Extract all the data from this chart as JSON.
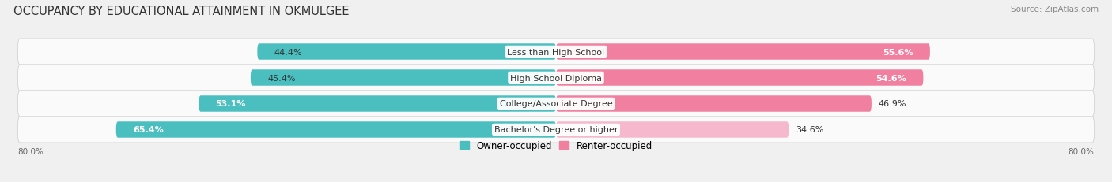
{
  "title": "OCCUPANCY BY EDUCATIONAL ATTAINMENT IN OKMULGEE",
  "source": "Source: ZipAtlas.com",
  "categories": [
    "Less than High School",
    "High School Diploma",
    "College/Associate Degree",
    "Bachelor's Degree or higher"
  ],
  "owner_pct": [
    44.4,
    45.4,
    53.1,
    65.4
  ],
  "renter_pct": [
    55.6,
    54.6,
    46.9,
    34.6
  ],
  "owner_color": "#4BBFBF",
  "renter_color": "#F07FA0",
  "renter_color_light": "#F5B8CC",
  "owner_label": "Owner-occupied",
  "renter_label": "Renter-occupied",
  "x_left_label": "80.0%",
  "x_right_label": "80.0%",
  "title_fontsize": 10.5,
  "source_fontsize": 7.5,
  "bar_label_fontsize": 8,
  "cat_fontsize": 8,
  "legend_fontsize": 8.5,
  "background_color": "#F0F0F0",
  "row_bg_color": "#FAFAFA",
  "max_val": 80.0
}
